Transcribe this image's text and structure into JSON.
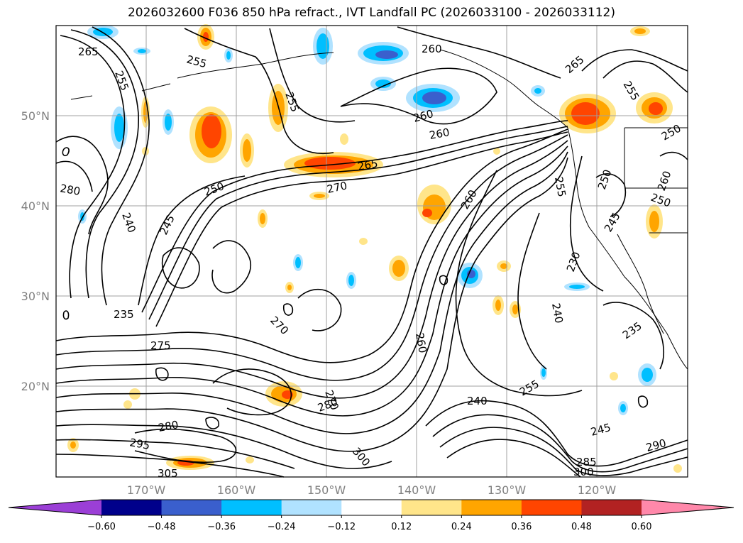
{
  "title": "2026032600 F036 850 hPa refract., IVT Landfall PC (2026033100 - 2026033112)",
  "lat_labels": [
    "50°N",
    "40°N",
    "30°N",
    "20°N"
  ],
  "lon_labels": [
    "170°W",
    "160°W",
    "150°W",
    "140°W",
    "130°W",
    "120°W"
  ],
  "contour_labels": [
    "265",
    "255",
    "255",
    "255",
    "260",
    "265",
    "260",
    "260",
    "265",
    "255",
    "250",
    "280",
    "270",
    "250",
    "245",
    "240",
    "260",
    "255",
    "250",
    "260",
    "250",
    "230",
    "245",
    "235",
    "275",
    "270",
    "240",
    "235",
    "260",
    "240",
    "255",
    "245",
    "280",
    "295",
    "290",
    "305",
    "300",
    "285",
    "300",
    "270",
    "280"
  ],
  "colorbar": {
    "ticks": [
      "−0.60",
      "−0.48",
      "−0.36",
      "−0.24",
      "−0.12",
      "0.12",
      "0.24",
      "0.36",
      "0.48",
      "0.60"
    ],
    "colors": [
      "#9b3fd6",
      "#00008b",
      "#3a5fcd",
      "#00bfff",
      "#b0e2ff",
      "#ffffff",
      "#ffe58a",
      "#ffa500",
      "#ff4500",
      "#b22222",
      "#ff88aa"
    ]
  }
}
